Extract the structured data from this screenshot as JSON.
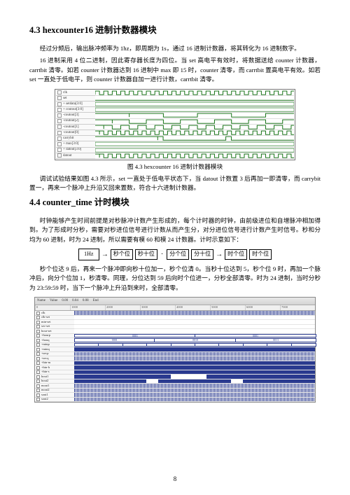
{
  "section43": {
    "heading": "4.3 hexcounter16 进制计数器模块",
    "p1": "经过分频后，输出脉冲频率为 1hz，即周期为 1s，通过 16 进制计数器，将其转化为 16 进制数字。",
    "p2": "16 进制采用 4 位二进制，因此寄存器长度为四位。当 set 高电平有效时，将数据送给 counter 计数器，carrtbit 清零。如若 counter 计数器达到 16 进制中 max 即 15 时，counter 清零，而 carrtbit 置高电平有效。如若 set 一直处于低电平，则 counter 计数器自加一进行计数，carrtbit 清零。",
    "caption": "图 4.3 hexcounter 16 进制计数器模块",
    "p3": "调试试验结果如图 4.3 所示，set 一直处于低电平状态下，当 datout 计数置 3 后再加一即清零，而 carrybit 置一，再来一个脉冲上升沿又回来置数，符合十六进制计数器。"
  },
  "fig43": {
    "signals": [
      "clk",
      "set",
      "+ setdata[3:0]",
      "+ coutout[3:0]",
      "-coutout[3]",
      "-coutout[2]",
      "-coutout[1]",
      "-coutout[0]",
      "carrybit",
      "+ max[3:0]",
      "+ datout[3:0]",
      "datout"
    ],
    "wave_color": "#006600",
    "grid_color": "#cccccc",
    "bg_color": "#ffffff"
  },
  "section44": {
    "heading": "4.4 counter_time 计时模块",
    "p1": "时钟能够产生时间前提是对秒脉冲计数产生形成的，每个计时器的时钟，由前级进位和自增脉冲相加得到。为了形成时分秒，需要对秒进位信号进行计数从而产生分，对分进位信号进行计数产生时信号。秒和分均为 60 进制，时为 24 进制，所以需要有模 60 和模 24 计数器。计时示意如下：",
    "flow": [
      "1Hz",
      "秒个位",
      "秒十位",
      "分个位",
      "分十位",
      "时个位",
      "时个位"
    ],
    "p2": "秒个位达 9 后，再来一个脉冲即向秒十位加一，秒个位清 0。当秒十位达到 5，秒个位 9 时，再加一个脉冲后，向分个位加 1，秒清零。同理，分位达到 59 后向时个位进一，分秒全部清零。时为 24 进制，当时分秒为 23:59:59 时，当下一个脉冲上升沿到来时，全部清零。"
  },
  "fig44": {
    "toolbar": [
      "Name",
      "Value",
      "0.00",
      "0.04",
      "0.08",
      "End"
    ],
    "ruler": [
      "0",
      "1000",
      "2000",
      "3000",
      "4000",
      "5000",
      "6000",
      "7000"
    ],
    "signals": [
      "clk",
      "clk-set",
      "min-set",
      "sec-set",
      "hour-set",
      "+hourp",
      "+houq",
      "+minp",
      "+minq",
      "+secp",
      "+secq",
      "+bin-m",
      "+bin-h",
      "+bin-s",
      "hout1",
      "hout2",
      "mout1",
      "mout2",
      "sout1",
      "sout2"
    ],
    "hex_labels_r1": [
      "0001",
      "0001"
    ],
    "hex_labels_r2": [
      "0001",
      "0010",
      "0011"
    ],
    "blue": "#2a3a8f"
  },
  "page_number": "8"
}
